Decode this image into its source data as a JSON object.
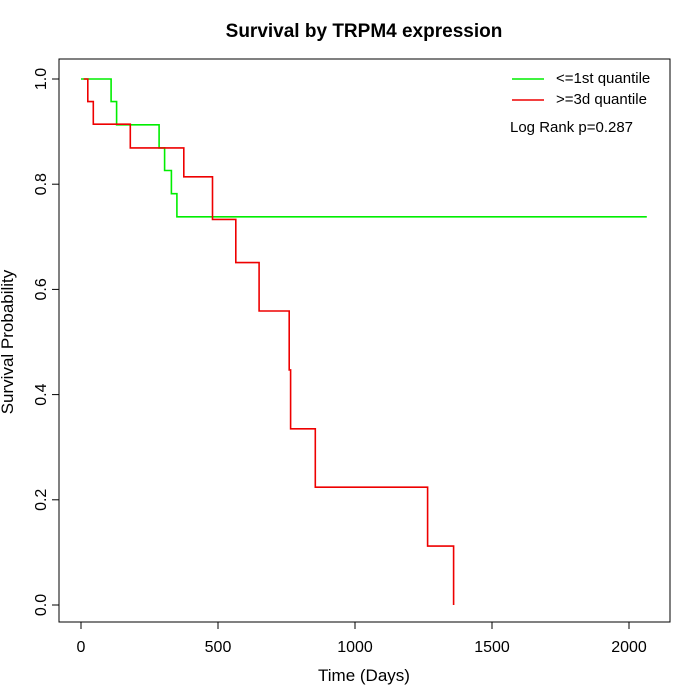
{
  "chart_data": {
    "type": "line",
    "title": "Survival by TRPM4 expression",
    "xlabel": "Time (Days)",
    "ylabel": "Survival Probability",
    "xlim": [
      0,
      2070
    ],
    "ylim": [
      0,
      1.0
    ],
    "x_ticks": [
      0,
      500,
      1000,
      1500,
      2000
    ],
    "y_ticks": [
      "0.0",
      "0.2",
      "0.4",
      "0.6",
      "0.8",
      "1.0"
    ],
    "grid": false,
    "legend_position": "top-right",
    "annotation": "Log Rank p=0.287",
    "series": [
      {
        "name": "<=1st quantile",
        "color": "#00ee00",
        "step_points": [
          [
            0,
            1.0
          ],
          [
            110,
            1.0
          ],
          [
            110,
            0.957
          ],
          [
            130,
            0.957
          ],
          [
            130,
            0.913
          ],
          [
            285,
            0.913
          ],
          [
            285,
            0.869
          ],
          [
            305,
            0.869
          ],
          [
            305,
            0.826
          ],
          [
            330,
            0.826
          ],
          [
            330,
            0.782
          ],
          [
            350,
            0.782
          ],
          [
            350,
            0.738
          ],
          [
            2065,
            0.738
          ]
        ]
      },
      {
        "name": ">=3d quantile",
        "color": "#ee0000",
        "step_points": [
          [
            10,
            1.0
          ],
          [
            25,
            1.0
          ],
          [
            25,
            0.957
          ],
          [
            45,
            0.957
          ],
          [
            45,
            0.914
          ],
          [
            180,
            0.914
          ],
          [
            180,
            0.869
          ],
          [
            375,
            0.869
          ],
          [
            375,
            0.814
          ],
          [
            480,
            0.814
          ],
          [
            480,
            0.733
          ],
          [
            565,
            0.733
          ],
          [
            565,
            0.651
          ],
          [
            650,
            0.651
          ],
          [
            650,
            0.559
          ],
          [
            760,
            0.559
          ],
          [
            760,
            0.447
          ],
          [
            765,
            0.447
          ],
          [
            765,
            0.335
          ],
          [
            855,
            0.335
          ],
          [
            855,
            0.224
          ],
          [
            1265,
            0.224
          ],
          [
            1265,
            0.112
          ],
          [
            1360,
            0.112
          ],
          [
            1360,
            0.0
          ]
        ]
      }
    ]
  }
}
